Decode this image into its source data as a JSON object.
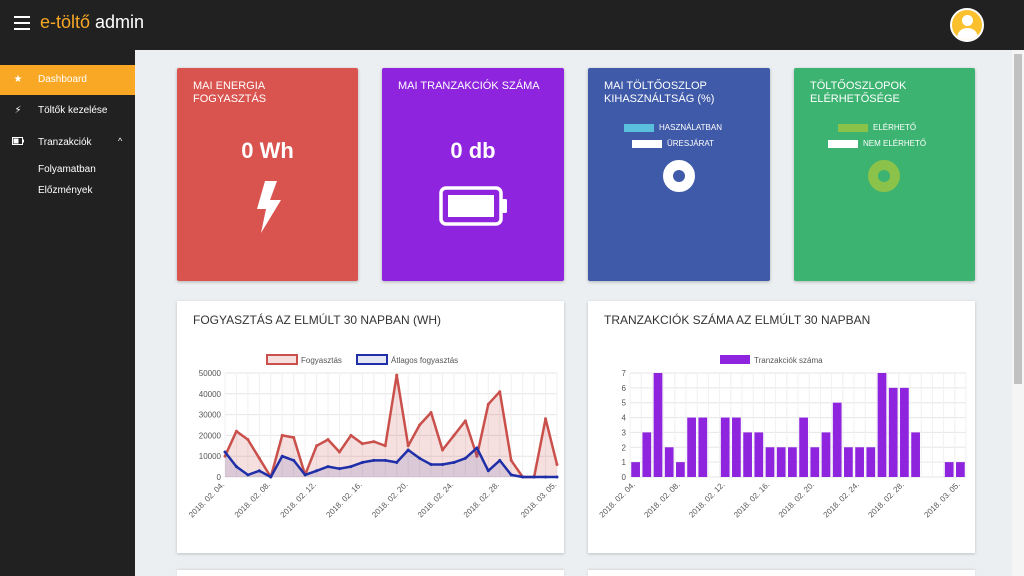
{
  "app": {
    "brand_accent": "e-töltő",
    "brand_rest": " admin"
  },
  "sidebar": {
    "items": [
      {
        "label": "Dashboard",
        "icon": "star-icon"
      },
      {
        "label": "Töltők kezelése",
        "icon": "plug-icon"
      },
      {
        "label": "Tranzakciók",
        "icon": "battery-icon"
      }
    ],
    "subitems": [
      {
        "label": "Folyamatban"
      },
      {
        "label": "Előzmények"
      }
    ]
  },
  "cards": {
    "energy": {
      "title": "Mai energia fogyasztás",
      "value": "0 Wh",
      "icon": "lightning-icon",
      "color": "#d9534f"
    },
    "transactions": {
      "title": "Mai tranzakciók száma",
      "value": "0 db",
      "icon": "battery-icon",
      "color": "#8e24dd"
    },
    "usage": {
      "title": "Mai töltőoszlop kihasználtság (%)",
      "color": "#3f5aa8",
      "legend": [
        "Használatban",
        "Üresjárat"
      ],
      "legend_colors": [
        "#5bc0de",
        "#ffffff"
      ],
      "used_fraction": 0.0
    },
    "availability": {
      "title": "Töltőoszlopok elérhetősége",
      "color": "#3cb371",
      "legend": [
        "Elérhető",
        "Nem elérhető"
      ],
      "legend_colors": [
        "#8bc34a",
        "#ffffff"
      ],
      "available_fraction": 1.0
    }
  },
  "chart_data": [
    {
      "type": "line",
      "title": "Fogyasztás az elmúlt 30 napban (Wh)",
      "x": [
        "2018. 02. 04.",
        "2018. 02. 05.",
        "2018. 02. 06.",
        "2018. 02. 07.",
        "2018. 02. 08.",
        "2018. 02. 09.",
        "2018. 02. 10.",
        "2018. 02. 11.",
        "2018. 02. 12.",
        "2018. 02. 13.",
        "2018. 02. 14.",
        "2018. 02. 15.",
        "2018. 02. 16.",
        "2018. 02. 17.",
        "2018. 02. 18.",
        "2018. 02. 19.",
        "2018. 02. 20.",
        "2018. 02. 21.",
        "2018. 02. 22.",
        "2018. 02. 23.",
        "2018. 02. 24.",
        "2018. 02. 25.",
        "2018. 02. 26.",
        "2018. 02. 27.",
        "2018. 02. 28.",
        "2018. 03. 01.",
        "2018. 03. 02.",
        "2018. 03. 03.",
        "2018. 03. 04.",
        "2018. 03. 05."
      ],
      "tick_labels": [
        "2018. 02. 04.",
        "2018. 02. 08.",
        "2018. 02. 12.",
        "2018. 02. 16.",
        "2018. 02. 20.",
        "2018. 02. 24.",
        "2018. 02. 28.",
        "2018. 03. 05."
      ],
      "series": [
        {
          "name": "Fogyasztás",
          "color": "#c9504b",
          "fill": "rgba(201,80,75,0.18)",
          "values": [
            10000,
            22000,
            18000,
            9000,
            0,
            20000,
            19000,
            1000,
            15000,
            18000,
            12000,
            20000,
            16000,
            17000,
            15000,
            49000,
            15000,
            25000,
            31000,
            13000,
            20000,
            27000,
            10000,
            35000,
            41000,
            8000,
            0,
            0,
            28000,
            6000
          ]
        },
        {
          "name": "Átlagos fogyasztás",
          "color": "#1f2fa8",
          "fill": "rgba(31,47,168,0.12)",
          "values": [
            12000,
            5000,
            1000,
            3000,
            0,
            10000,
            8000,
            1000,
            3000,
            5000,
            4000,
            5000,
            7000,
            8000,
            8000,
            7000,
            13000,
            9000,
            6000,
            6000,
            7000,
            9000,
            14000,
            3000,
            8000,
            1000,
            0,
            0,
            0,
            0
          ]
        }
      ],
      "yticks": [
        0,
        10000,
        20000,
        30000,
        40000,
        50000
      ],
      "ylim": [
        0,
        50000
      ]
    },
    {
      "type": "bar",
      "title": "Tranzakciók száma az elmúlt 30 napban",
      "categories": [
        "2018. 02. 04.",
        "2018. 02. 05.",
        "2018. 02. 06.",
        "2018. 02. 07.",
        "2018. 02. 08.",
        "2018. 02. 09.",
        "2018. 02. 10.",
        "2018. 02. 11.",
        "2018. 02. 12.",
        "2018. 02. 13.",
        "2018. 02. 14.",
        "2018. 02. 15.",
        "2018. 02. 16.",
        "2018. 02. 17.",
        "2018. 02. 18.",
        "2018. 02. 19.",
        "2018. 02. 20.",
        "2018. 02. 21.",
        "2018. 02. 22.",
        "2018. 02. 23.",
        "2018. 02. 24.",
        "2018. 02. 25.",
        "2018. 02. 26.",
        "2018. 02. 27.",
        "2018. 02. 28.",
        "2018. 03. 01.",
        "2018. 03. 02.",
        "2018. 03. 03.",
        "2018. 03. 04.",
        "2018. 03. 05."
      ],
      "tick_labels": [
        "2018. 02. 04.",
        "2018. 02. 08.",
        "2018. 02. 12.",
        "2018. 02. 16.",
        "2018. 02. 20.",
        "2018. 02. 24.",
        "2018. 02. 28.",
        "2018. 03. 05."
      ],
      "series": [
        {
          "name": "Tranzakciók száma",
          "color": "#8e24dd",
          "values": [
            1,
            3,
            7,
            2,
            1,
            4,
            4,
            0,
            4,
            4,
            3,
            3,
            2,
            2,
            2,
            4,
            2,
            3,
            5,
            2,
            2,
            2,
            7,
            6,
            6,
            3,
            0,
            0,
            1,
            1
          ]
        }
      ],
      "yticks": [
        0,
        1,
        2,
        3,
        4,
        5,
        6,
        7
      ],
      "ylim": [
        0,
        7
      ]
    }
  ]
}
